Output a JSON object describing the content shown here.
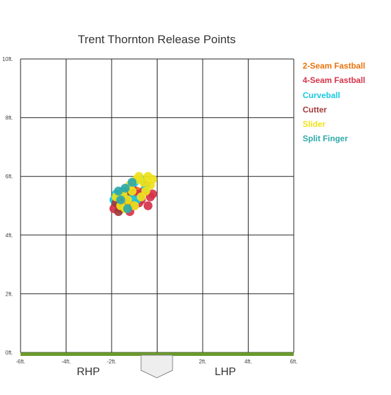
{
  "chart_data": {
    "type": "scatter",
    "title": "Trent Thornton Release Points",
    "xlim": [
      -6,
      6
    ],
    "ylim": [
      0,
      10
    ],
    "x_ticks": [
      -6,
      -4,
      -2,
      2,
      4,
      6
    ],
    "x_tick_labels": [
      "-6ft.",
      "-4ft.",
      "-2ft.",
      "2ft.",
      "4ft.",
      "6ft."
    ],
    "y_ticks": [
      0,
      2,
      4,
      6,
      8,
      10
    ],
    "y_tick_labels": [
      "0ft.",
      "2ft.",
      "4ft.",
      "6ft.",
      "8ft.",
      "10ft."
    ],
    "grid": true,
    "legend_position": "right",
    "side_labels": {
      "left": "RHP",
      "right": "LHP"
    },
    "series": [
      {
        "name": "2-Seam Fastball",
        "color": "#e8730c",
        "points": [
          [
            -1.5,
            5.2
          ],
          [
            -1.2,
            5.4
          ],
          [
            -1.0,
            5.1
          ],
          [
            -1.3,
            5.0
          ],
          [
            -0.9,
            5.5
          ]
        ]
      },
      {
        "name": "4-Seam Fastball",
        "color": "#d6334a",
        "points": [
          [
            -1.9,
            4.9
          ],
          [
            -1.7,
            5.0
          ],
          [
            -1.5,
            5.1
          ],
          [
            -1.3,
            5.3
          ],
          [
            -1.0,
            5.0
          ],
          [
            -0.9,
            5.4
          ],
          [
            -0.6,
            5.5
          ],
          [
            -0.3,
            5.3
          ],
          [
            -0.4,
            5.0
          ],
          [
            -0.7,
            5.2
          ],
          [
            -1.2,
            4.8
          ],
          [
            -1.6,
            5.3
          ],
          [
            -1.1,
            5.6
          ],
          [
            -0.5,
            5.7
          ],
          [
            -0.2,
            5.4
          ],
          [
            -0.8,
            5.1
          ]
        ]
      },
      {
        "name": "Curveball",
        "color": "#19c9e2",
        "points": [
          [
            -1.8,
            5.4
          ],
          [
            -1.5,
            5.5
          ],
          [
            -1.0,
            5.8
          ],
          [
            -0.7,
            5.9
          ],
          [
            -1.2,
            5.3
          ],
          [
            -0.5,
            5.6
          ],
          [
            -1.9,
            5.2
          ],
          [
            -0.9,
            5.2
          ]
        ]
      },
      {
        "name": "Cutter",
        "color": "#a33a3a",
        "points": [
          [
            -1.8,
            5.1
          ],
          [
            -1.6,
            4.9
          ],
          [
            -1.4,
            5.2
          ],
          [
            -1.2,
            5.5
          ],
          [
            -1.7,
            4.8
          ]
        ]
      },
      {
        "name": "Slider",
        "color": "#eee21b",
        "points": [
          [
            -1.8,
            5.3
          ],
          [
            -1.6,
            5.0
          ],
          [
            -1.3,
            5.2
          ],
          [
            -1.1,
            5.5
          ],
          [
            -0.9,
            5.9
          ],
          [
            -0.6,
            5.8
          ],
          [
            -0.4,
            6.0
          ],
          [
            -0.2,
            5.9
          ],
          [
            -0.5,
            5.5
          ],
          [
            -0.7,
            5.3
          ],
          [
            -1.0,
            5.0
          ],
          [
            -1.4,
            4.9
          ],
          [
            -1.2,
            5.7
          ],
          [
            -0.3,
            5.7
          ],
          [
            -0.8,
            6.0
          ],
          [
            -1.5,
            5.4
          ]
        ]
      },
      {
        "name": "Split Finger",
        "color": "#2fa9a8",
        "points": [
          [
            -1.7,
            5.5
          ],
          [
            -1.4,
            5.6
          ],
          [
            -1.1,
            5.8
          ],
          [
            -1.6,
            5.2
          ],
          [
            -1.3,
            4.9
          ]
        ]
      }
    ]
  }
}
